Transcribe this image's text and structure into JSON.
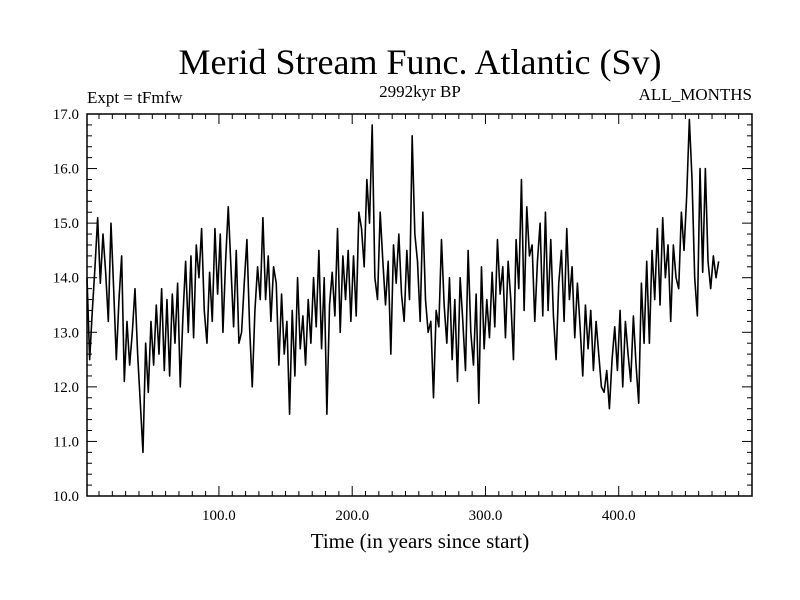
{
  "chart_data": {
    "type": "line",
    "title": "Merid Stream Func. Atlantic (Sv)",
    "subtitle_left": "Expt = tFmfw",
    "subtitle_center": "2992kyr BP",
    "subtitle_right": "ALL_MONTHS",
    "xlabel": "Time (in years since start)",
    "ylabel": "",
    "xlim": [
      1,
      500
    ],
    "ylim": [
      10,
      17
    ],
    "xticks": [
      100,
      200,
      300,
      400
    ],
    "xtick_labels": [
      "100.0",
      "200.0",
      "300.0",
      "400.0"
    ],
    "yticks": [
      10,
      11,
      12,
      13,
      14,
      15,
      16,
      17
    ],
    "ytick_labels": [
      "10.0",
      "11.0",
      "12.0",
      "13.0",
      "14.0",
      "15.0",
      "16.0",
      "17.0"
    ],
    "series": [
      {
        "name": "Merid Stream Func. Atlantic",
        "x_start": 1,
        "x_step": 2,
        "values": [
          14.0,
          12.5,
          13.4,
          14.2,
          15.1,
          13.9,
          14.8,
          14.1,
          13.2,
          15.0,
          13.8,
          12.5,
          13.6,
          14.4,
          12.1,
          13.2,
          12.4,
          13.0,
          13.8,
          12.6,
          11.7,
          10.8,
          12.8,
          11.9,
          13.2,
          12.4,
          13.5,
          12.6,
          13.8,
          12.3,
          13.6,
          12.2,
          13.7,
          12.8,
          13.9,
          12.0,
          13.3,
          14.3,
          13.0,
          14.4,
          12.9,
          14.6,
          14.0,
          14.9,
          13.4,
          12.8,
          14.1,
          13.2,
          14.9,
          13.7,
          14.8,
          13.0,
          14.3,
          15.3,
          14.2,
          13.1,
          14.5,
          12.8,
          13.0,
          13.9,
          14.7,
          13.1,
          12.0,
          13.4,
          14.2,
          13.6,
          15.1,
          13.6,
          14.4,
          13.2,
          14.2,
          13.9,
          12.4,
          13.7,
          12.6,
          13.2,
          11.5,
          13.4,
          12.2,
          14.0,
          12.7,
          13.3,
          12.4,
          13.6,
          12.8,
          14.0,
          13.1,
          14.5,
          12.7,
          14.0,
          11.5,
          13.5,
          14.1,
          13.3,
          14.9,
          13.0,
          14.4,
          13.6,
          14.5,
          13.2,
          14.4,
          13.3,
          15.2,
          14.9,
          14.2,
          15.8,
          15.0,
          16.8,
          14.0,
          13.6,
          15.2,
          14.3,
          13.5,
          14.3,
          12.6,
          14.6,
          13.9,
          14.8,
          13.7,
          13.2,
          14.5,
          13.6,
          16.6,
          14.8,
          14.3,
          13.2,
          15.2,
          13.6,
          13.0,
          13.2,
          11.8,
          13.4,
          13.1,
          14.7,
          13.5,
          12.8,
          14.0,
          12.5,
          13.6,
          12.1,
          14.0,
          13.2,
          12.3,
          14.5,
          13.0,
          12.4,
          13.7,
          11.7,
          14.2,
          12.7,
          13.6,
          12.9,
          14.1,
          13.1,
          14.7,
          13.7,
          14.2,
          12.9,
          14.3,
          13.6,
          12.5,
          14.7,
          13.8,
          15.8,
          13.4,
          15.3,
          14.4,
          14.6,
          13.2,
          14.3,
          15.0,
          13.3,
          15.2,
          13.4,
          14.7,
          13.3,
          12.5,
          13.9,
          14.5,
          13.2,
          14.9,
          13.6,
          14.2,
          12.9,
          13.9,
          13.1,
          12.2,
          13.5,
          12.7,
          13.4,
          12.3,
          13.2,
          12.6,
          12.0,
          11.9,
          12.3,
          11.6,
          12.5,
          13.1,
          12.3,
          13.4,
          12.0,
          13.2,
          12.6,
          12.1,
          13.3,
          12.4,
          11.7,
          13.9,
          12.8,
          14.3,
          12.8,
          14.5,
          13.6,
          14.9,
          13.5,
          15.1,
          14.0,
          14.6,
          13.2,
          14.6,
          14.0,
          13.8,
          15.2,
          14.5,
          15.5,
          16.9,
          15.8,
          14.0,
          13.3,
          16.0,
          14.1,
          16.0,
          14.3,
          13.8,
          14.4,
          14.0,
          14.3
        ]
      }
    ]
  }
}
